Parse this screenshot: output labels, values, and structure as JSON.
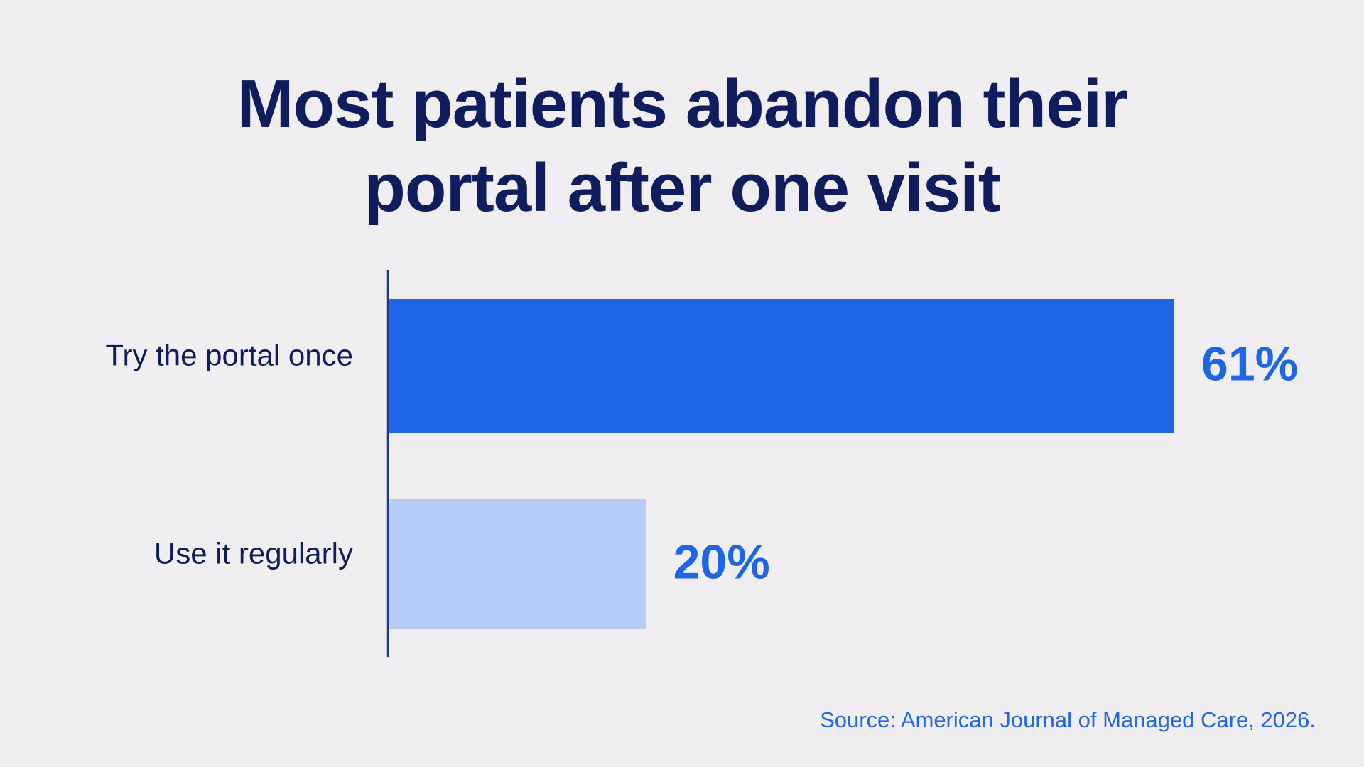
{
  "title": {
    "line1": "Most patients abandon their",
    "line2": "portal after one visit"
  },
  "source": "Source: American Journal of Managed Care, 2026.",
  "colors": {
    "background": "#f0eef1",
    "title": "#0f1c5e",
    "axis": "#1e3a8a",
    "bar_primary": "#1f66e5",
    "bar_secondary": "#b6cdf8",
    "value_text": "#1f66e5",
    "source_text": "#2267e3"
  },
  "chart_data": {
    "type": "bar",
    "orientation": "horizontal",
    "title": "Most patients abandon their portal after one visit",
    "categories": [
      "Try the portal once",
      "Use it regularly"
    ],
    "values": [
      61,
      20
    ],
    "value_labels": [
      "61%",
      "20%"
    ],
    "unit": "%",
    "xlim": [
      0,
      100
    ],
    "grid": false,
    "legend": "none",
    "xlabel": "",
    "ylabel": ""
  }
}
